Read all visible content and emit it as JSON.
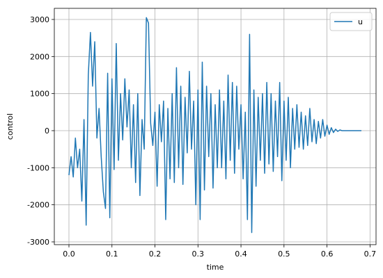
{
  "chart_data": {
    "type": "line",
    "xlabel": "time",
    "ylabel": "control",
    "xlim": [
      -0.034,
      0.714
    ],
    "ylim": [
      -3075,
      3300
    ],
    "xticks": [
      {
        "value": 0,
        "label": "0.0"
      },
      0.1,
      0.2,
      0.3,
      0.4,
      0.5,
      0.6,
      0.7
    ],
    "yticks": [
      -3000,
      -2000,
      -1000,
      0,
      1000,
      2000,
      3000
    ],
    "grid": true,
    "legend": "upper right",
    "x": [
      0,
      0.005,
      0.01,
      0.015,
      0.02,
      0.025,
      0.03,
      0.035,
      0.04,
      0.045,
      0.05,
      0.055,
      0.06,
      0.065,
      0.07,
      0.075,
      0.08,
      0.085,
      0.09,
      0.095,
      0.1,
      0.105,
      0.11,
      0.115,
      0.12,
      0.125,
      0.13,
      0.135,
      0.14,
      0.145,
      0.15,
      0.155,
      0.16,
      0.165,
      0.17,
      0.175,
      0.18,
      0.185,
      0.19,
      0.195,
      0.2,
      0.205,
      0.21,
      0.215,
      0.22,
      0.225,
      0.23,
      0.235,
      0.24,
      0.245,
      0.25,
      0.255,
      0.26,
      0.265,
      0.27,
      0.275,
      0.28,
      0.285,
      0.29,
      0.295,
      0.3,
      0.305,
      0.31,
      0.315,
      0.32,
      0.325,
      0.33,
      0.335,
      0.34,
      0.345,
      0.35,
      0.355,
      0.36,
      0.365,
      0.37,
      0.375,
      0.38,
      0.385,
      0.39,
      0.395,
      0.4,
      0.405,
      0.41,
      0.415,
      0.42,
      0.425,
      0.43,
      0.435,
      0.44,
      0.445,
      0.45,
      0.455,
      0.46,
      0.465,
      0.47,
      0.475,
      0.48,
      0.485,
      0.49,
      0.495,
      0.5,
      0.505,
      0.51,
      0.515,
      0.52,
      0.525,
      0.53,
      0.535,
      0.54,
      0.545,
      0.55,
      0.555,
      0.56,
      0.565,
      0.57,
      0.575,
      0.58,
      0.585,
      0.59,
      0.595,
      0.6,
      0.605,
      0.61,
      0.615,
      0.62,
      0.625,
      0.63,
      0.635,
      0.64,
      0.66,
      0.68
    ],
    "series": [
      {
        "name": "u",
        "color": "#1f77b4",
        "values": [
          -1200,
          -700,
          -1250,
          -200,
          -1000,
          -500,
          -1900,
          300,
          -2550,
          1500,
          2650,
          1200,
          2400,
          -200,
          600,
          -700,
          -1650,
          -2100,
          1550,
          -2350,
          1400,
          -1050,
          2350,
          -800,
          1000,
          -250,
          1400,
          100,
          1100,
          -1000,
          700,
          -1400,
          1000,
          -1750,
          300,
          -500,
          3050,
          2900,
          200,
          -400,
          500,
          -1500,
          700,
          -300,
          800,
          -2400,
          600,
          -1300,
          1000,
          -1400,
          1700,
          -1000,
          1200,
          -1450,
          900,
          -600,
          1600,
          -500,
          800,
          -2000,
          1100,
          -2400,
          1850,
          -1600,
          1200,
          -700,
          1000,
          -1550,
          700,
          -1000,
          1100,
          -1000,
          800,
          -1300,
          1500,
          -800,
          1300,
          -1150,
          1200,
          -500,
          700,
          -1300,
          500,
          -2400,
          2600,
          -2750,
          1100,
          -1500,
          900,
          -800,
          1000,
          -1150,
          1300,
          -900,
          1000,
          -1100,
          800,
          -700,
          1300,
          -1350,
          800,
          -800,
          900,
          -1000,
          600,
          -500,
          700,
          -450,
          500,
          -500,
          400,
          -400,
          600,
          -300,
          300,
          -350,
          250,
          -200,
          300,
          -150,
          150,
          -100,
          80,
          -50,
          40,
          -20,
          20,
          0,
          0,
          0,
          0
        ]
      }
    ]
  }
}
